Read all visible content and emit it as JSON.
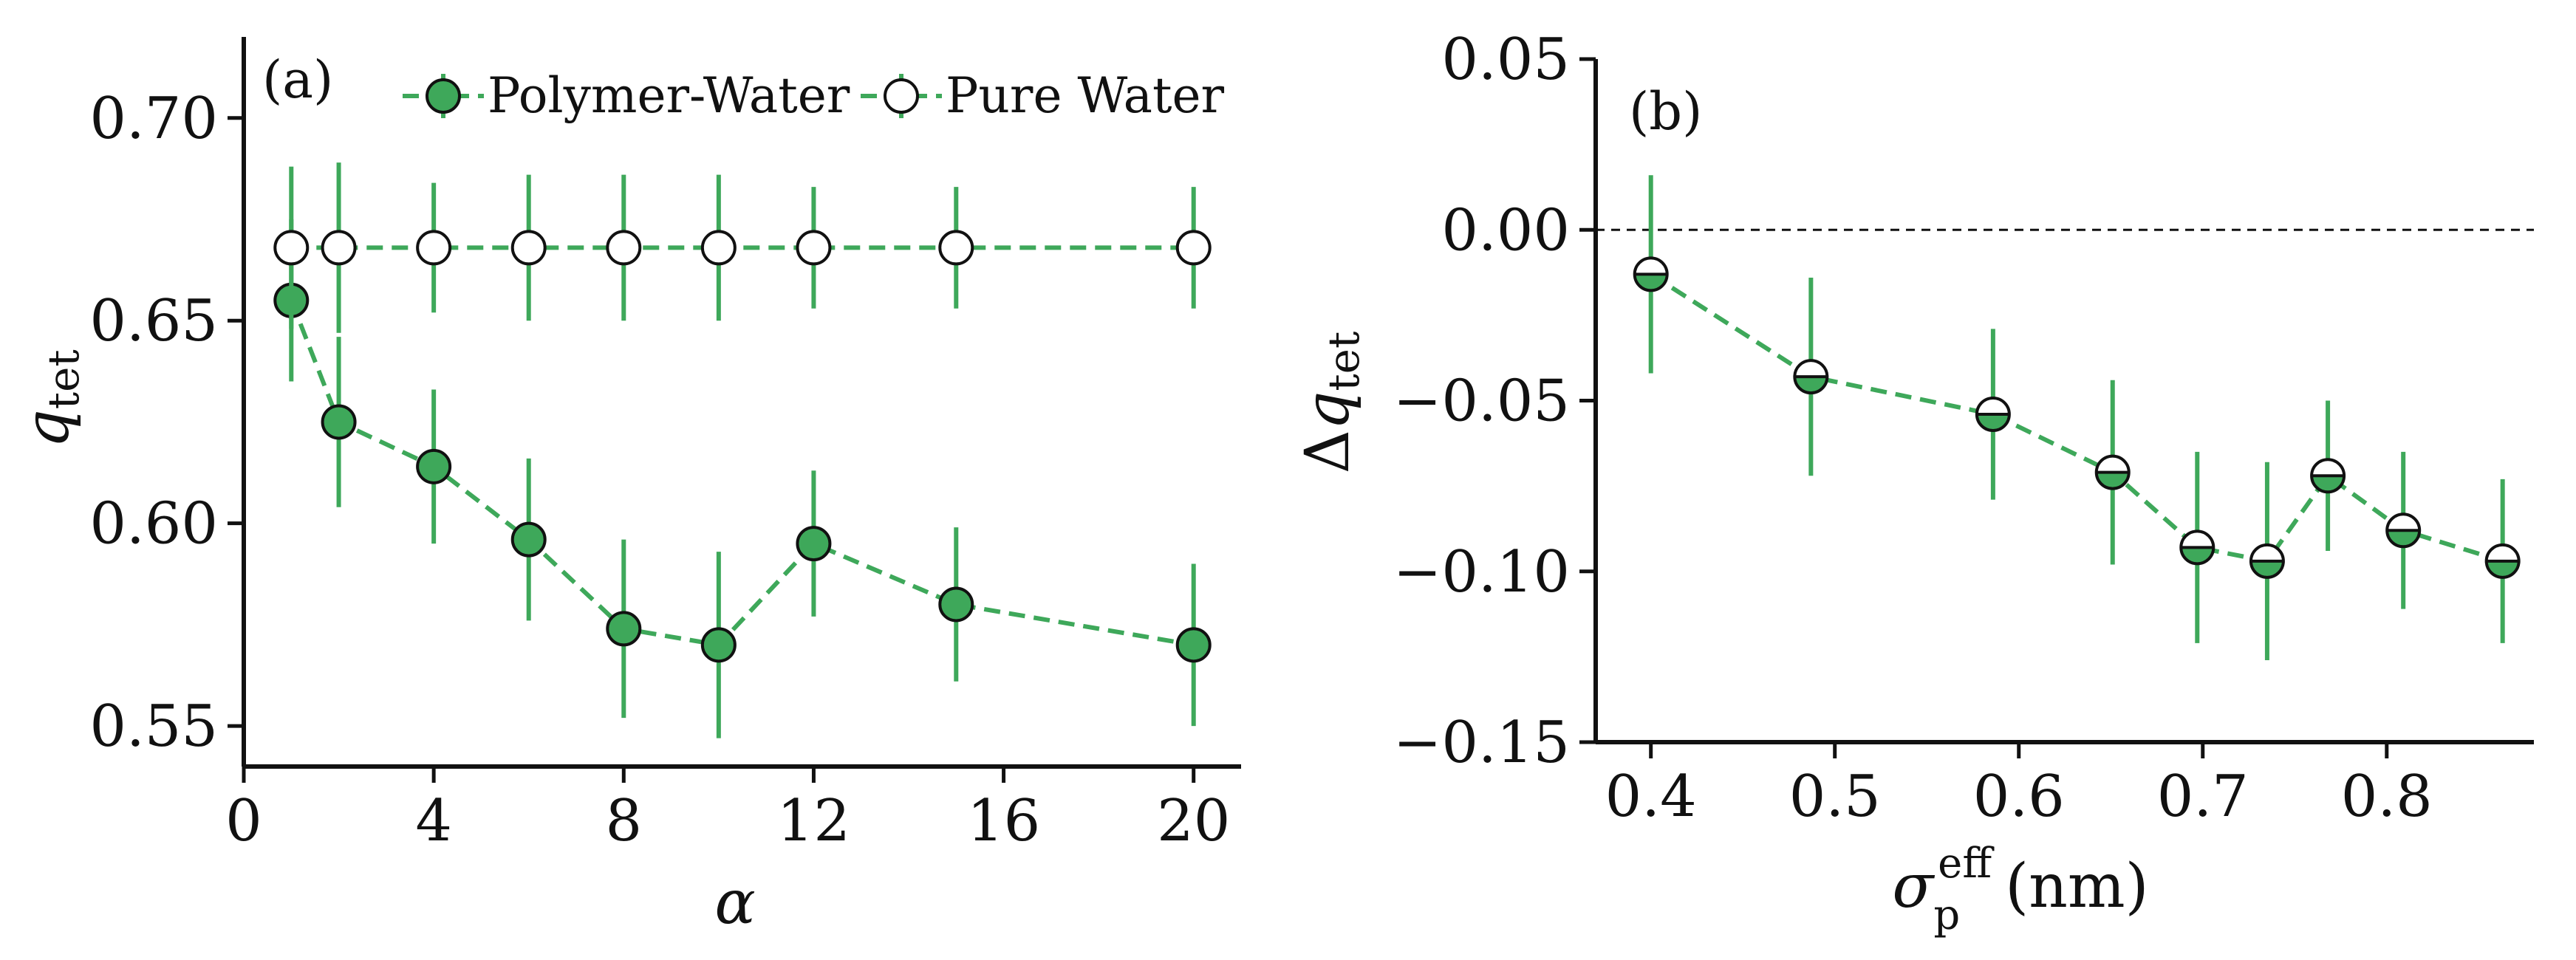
{
  "chart_data": [
    {
      "type": "line",
      "panel": "a",
      "tag": "(a)",
      "title": "",
      "xlabel": "α",
      "ylabel": "q",
      "ylabel_sub": "tet",
      "xlim": [
        0,
        21
      ],
      "ylim": [
        0.54,
        0.72
      ],
      "xticks": [
        0,
        4,
        8,
        12,
        16,
        20
      ],
      "xtick_labels": [
        "0",
        "4",
        "8",
        "12",
        "16",
        "20"
      ],
      "yticks": [
        0.55,
        0.6,
        0.65,
        0.7
      ],
      "ytick_labels": [
        "0.55",
        "0.60",
        "0.65",
        "0.70"
      ],
      "legend_position": "top",
      "series": [
        {
          "name": "Polymer-Water",
          "marker": "filled",
          "color": "#3ea85a",
          "x": [
            1,
            2,
            4,
            6,
            8,
            10,
            12,
            15,
            20
          ],
          "y": [
            0.655,
            0.625,
            0.614,
            0.596,
            0.574,
            0.57,
            0.595,
            0.58,
            0.57
          ],
          "yerr": [
            0.02,
            0.021,
            0.019,
            0.02,
            0.022,
            0.023,
            0.018,
            0.019,
            0.02
          ]
        },
        {
          "name": "Pure Water",
          "marker": "open",
          "color": "#3ea85a",
          "x": [
            1,
            2,
            4,
            6,
            8,
            10,
            12,
            15,
            20
          ],
          "y": [
            0.668,
            0.668,
            0.668,
            0.668,
            0.668,
            0.668,
            0.668,
            0.668,
            0.668
          ],
          "yerr": [
            0.02,
            0.021,
            0.016,
            0.018,
            0.018,
            0.018,
            0.015,
            0.015,
            0.015
          ]
        }
      ]
    },
    {
      "type": "line",
      "panel": "b",
      "tag": "(b)",
      "title": "",
      "xlabel_symbol": "σ",
      "xlabel_sub": "p",
      "xlabel_sup": "eff",
      "xlabel_unit": "(nm)",
      "ylabel_prefix": "Δ",
      "ylabel": "q",
      "ylabel_sub": "tet",
      "xlim": [
        0.37,
        0.88
      ],
      "ylim": [
        -0.15,
        0.05
      ],
      "xticks": [
        0.4,
        0.5,
        0.6,
        0.7,
        0.8
      ],
      "xtick_labels": [
        "0.4",
        "0.5",
        "0.6",
        "0.7",
        "0.8"
      ],
      "yticks": [
        -0.15,
        -0.1,
        -0.05,
        0.0,
        0.05
      ],
      "ytick_labels": [
        "−0.15",
        "−0.10",
        "−0.05",
        "0.00",
        "0.05"
      ],
      "reference_line_y": 0,
      "series": [
        {
          "name": "Δq_tet",
          "marker": "half-filled",
          "color": "#3ea85a",
          "x": [
            0.4,
            0.487,
            0.586,
            0.651,
            0.697,
            0.735,
            0.768,
            0.809,
            0.863
          ],
          "y": [
            -0.013,
            -0.043,
            -0.054,
            -0.071,
            -0.093,
            -0.097,
            -0.072,
            -0.088,
            -0.097
          ],
          "yerr": [
            0.029,
            0.029,
            0.025,
            0.027,
            0.028,
            0.029,
            0.022,
            0.023,
            0.024
          ]
        }
      ]
    }
  ]
}
